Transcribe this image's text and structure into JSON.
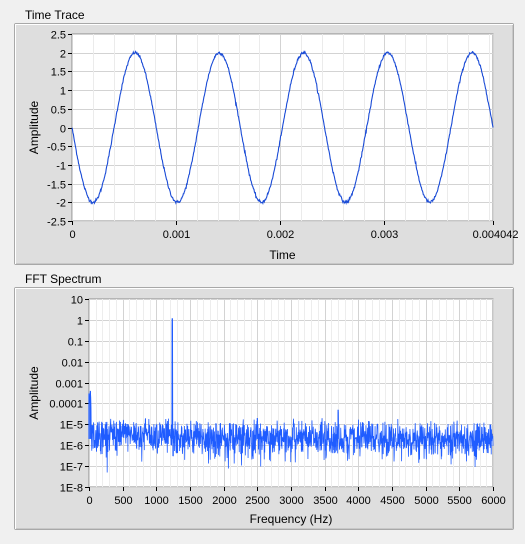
{
  "time_panel": {
    "title": "Time Trace"
  },
  "fft_panel": {
    "title": "FFT Spectrum"
  },
  "colors": {
    "trace": "#1a4bd6",
    "fft": "#1f5cff",
    "grid": "#d3d3d3",
    "plot_bg": "#ffffff",
    "frame": "#dedede"
  },
  "chart_data": [
    {
      "type": "line",
      "title": "Time Trace",
      "xlabel": "Time",
      "ylabel": "Amplitude",
      "xlim": [
        0,
        0.004042
      ],
      "ylim": [
        -2.5,
        2.5
      ],
      "x_ticks": [
        0,
        0.001,
        0.002,
        0.003,
        0.004042
      ],
      "x_tick_labels": [
        "0",
        "0.001",
        "0.002",
        "0.003",
        "0.004042"
      ],
      "y_ticks": [
        2.5,
        2,
        1.5,
        1,
        0.5,
        0,
        -0.5,
        -1,
        -1.5,
        -2,
        -2.5
      ],
      "y_tick_labels": [
        "2.5",
        "2",
        "1.5",
        "1",
        "0.5",
        "0",
        "-0.5",
        "-1",
        "-1.5",
        "-2",
        "-2.5"
      ],
      "grid": true,
      "series": [
        {
          "amplitude": 2.0,
          "frequency_hz": 1237,
          "phase_deg": 180,
          "noise": 0.02
        }
      ]
    },
    {
      "type": "line",
      "title": "FFT Spectrum",
      "xlabel": "Frequency (Hz)",
      "ylabel": "Amplitude",
      "xlim": [
        0,
        6000
      ],
      "ylim": [
        1e-08,
        10
      ],
      "y_scale": "log",
      "x_ticks": [
        0,
        500,
        1000,
        1500,
        2000,
        2500,
        3000,
        3500,
        4000,
        4500,
        5000,
        5500,
        6000
      ],
      "x_tick_labels": [
        "0",
        "500",
        "1000",
        "1500",
        "2000",
        "2500",
        "3000",
        "3500",
        "4000",
        "4500",
        "5000",
        "5500",
        "6000"
      ],
      "y_ticks": [
        10,
        1,
        0.1,
        0.01,
        0.001,
        0.0001,
        1e-05,
        1e-06,
        1e-07,
        1e-08
      ],
      "y_tick_labels": [
        "10",
        "1",
        "0.1",
        "0.01",
        "0.001",
        "0.0001",
        "1E-5",
        "1E-6",
        "1E-7",
        "1E-8"
      ],
      "grid": true,
      "peaks": [
        {
          "frequency_hz": 0,
          "amplitude": 0.0003
        },
        {
          "frequency_hz": 20,
          "amplitude": 0.0004
        },
        {
          "frequency_hz": 1237,
          "amplitude": 1.2
        },
        {
          "frequency_hz": 2500,
          "amplitude": 2e-05
        },
        {
          "frequency_hz": 3700,
          "amplitude": 5e-05
        }
      ],
      "noise_floor": {
        "median": 2e-06,
        "low": 1e-07,
        "high": 1e-05
      }
    }
  ]
}
